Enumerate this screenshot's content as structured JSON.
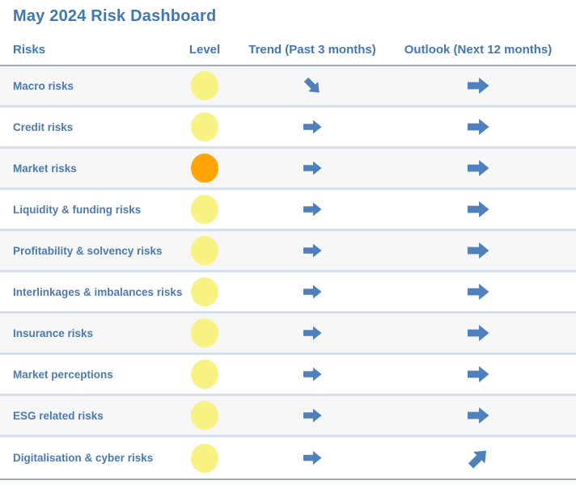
{
  "chart_data": {
    "type": "table",
    "title": "May 2024 Risk Dashboard",
    "columns": [
      "Risks",
      "Level",
      "Trend (Past 3 months)",
      "Outlook (Next 12 months)"
    ],
    "rows": [
      {
        "risk": "Macro risks",
        "level": "yellow",
        "trend": "down-right",
        "outlook": "right"
      },
      {
        "risk": "Credit risks",
        "level": "yellow",
        "trend": "right",
        "outlook": "right"
      },
      {
        "risk": "Market risks",
        "level": "orange",
        "trend": "right",
        "outlook": "right"
      },
      {
        "risk": "Liquidity & funding risks",
        "level": "yellow",
        "trend": "right",
        "outlook": "right"
      },
      {
        "risk": "Profitability & solvency risks",
        "level": "yellow",
        "trend": "right",
        "outlook": "right"
      },
      {
        "risk": "Interlinkages & imbalances risks",
        "level": "yellow",
        "trend": "right",
        "outlook": "right"
      },
      {
        "risk": "Insurance risks",
        "level": "yellow",
        "trend": "right",
        "outlook": "right"
      },
      {
        "risk": "Market perceptions",
        "level": "yellow",
        "trend": "right",
        "outlook": "right"
      },
      {
        "risk": "ESG related risks",
        "level": "yellow",
        "trend": "right",
        "outlook": "right"
      },
      {
        "risk": "Digitalisation & cyber risks",
        "level": "yellow",
        "trend": "right",
        "outlook": "up-right"
      }
    ],
    "layout": {
      "grid": "horizontal row separators, alternating row shading",
      "legend_position": "none"
    }
  },
  "icons": {
    "risk-level-icon": "filled circle (yellow or orange)",
    "trend-arrow-icon": "solid block arrow (right / down-right)",
    "outlook-arrow-icon": "solid block arrow (right / up-right)"
  },
  "colors": {
    "title_blue": "#4077B2",
    "label_blue": "#4C7AAE",
    "arrow_blue": "#4E80BB",
    "level_yellow": "#F7F282",
    "level_orange": "#FFA404",
    "row_alt_bg": "#F6F6F6",
    "row_separator": "#D6E0EE",
    "table_border": "#A3A9AE"
  }
}
